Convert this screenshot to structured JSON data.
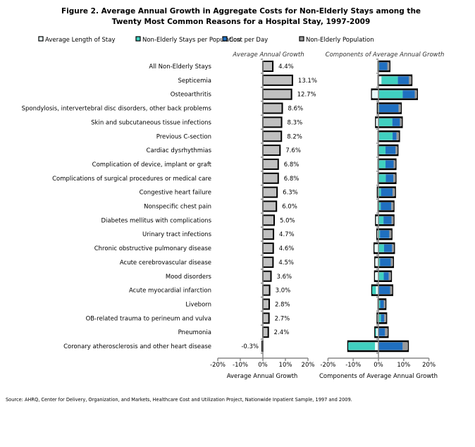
{
  "title_line1": "Figure 2.  Average Annual Growth in Aggregate Costs for Non-Elderly Stays among the",
  "title_line2": "Twenty Most Common Reasons for a Hospital Stay, 1997-2009",
  "source": "Source: AHRQ, Center for Delivery, Organization, and Markets, Healthcare Cost and Utilization Project, Nationwide Inpatient Sample, 1997 and 2009.",
  "colors": {
    "los": "#e8fafa",
    "stays": "#40d0c0",
    "cost": "#1f6fc0",
    "pop": "#999999",
    "total": "#c0c0c0"
  },
  "chart_data": [
    {
      "type": "bar",
      "orientation": "horizontal",
      "subtitle": "Average Annual Growth",
      "xlabel": "Average Annual Growth",
      "xlim": [
        -20,
        20
      ],
      "ticks": [
        "-20%",
        "-10%",
        "0%",
        "10%",
        "20%"
      ],
      "categories": [
        "All Non-Elderly Stays",
        "Septicemia",
        "Osteoarthritis",
        "Spondylosis, intervertebral disc disorders, other back problems",
        "Skin and subcutaneous tissue infections",
        "Previous C-section",
        "Cardiac dysrhythmias",
        "Complication of device, implant or graft",
        "Complications of surgical procedures or medical care",
        "Congestive heart failure",
        "Nonspecific chest pain",
        "Diabetes mellitus with complications",
        "Urinary tract infections",
        "Chronic obstructive pulmonary disease",
        "Acute cerebrovascular disease",
        "Mood disorders",
        "Acute myocardial infarction",
        "Liveborn",
        "OB-related trauma to perineum and vulva",
        "Pneumonia",
        "Coronary atherosclerosis and other heart disease"
      ],
      "values": [
        4.4,
        13.1,
        12.7,
        8.6,
        8.3,
        8.2,
        7.6,
        6.8,
        6.8,
        6.3,
        6.0,
        5.0,
        4.7,
        4.6,
        4.5,
        3.6,
        3.0,
        2.8,
        2.7,
        2.4,
        -0.3
      ],
      "labels": [
        "4.4%",
        "13.1%",
        "12.7%",
        "8.6%",
        "8.3%",
        "8.2%",
        "7.6%",
        "6.8%",
        "6.8%",
        "6.3%",
        "6.0%",
        "5.0%",
        "4.7%",
        "4.6%",
        "4.5%",
        "3.6%",
        "3.0%",
        "2.8%",
        "2.7%",
        "2.4%",
        "-0.3%"
      ]
    },
    {
      "type": "bar",
      "orientation": "horizontal",
      "stacked": true,
      "subtitle": "Components of Average Annual Growth",
      "xlabel": "Components of Average Annual Growth",
      "xlim": [
        -20,
        20
      ],
      "ticks": [
        "-20%",
        "-10%",
        "0%",
        "10%",
        "20%"
      ],
      "legend": "top",
      "series": [
        {
          "name": "Average Length of Stay",
          "key": "los",
          "values": [
            0,
            1.2,
            -2.6,
            -0.3,
            -1.0,
            0.3,
            0,
            0,
            0.1,
            -0.3,
            0.1,
            -1.0,
            -0.5,
            -1.6,
            -1.3,
            -1.4,
            -1.0,
            0.2,
            -0.4,
            -0.9,
            -1.4
          ]
        },
        {
          "name": "Non-Elderly Stays per Population",
          "key": "stays",
          "values": [
            0.3,
            6.5,
            9.6,
            0.3,
            5.5,
            5.3,
            2.8,
            2.8,
            2.8,
            1.0,
            0.8,
            2.0,
            0.6,
            2.2,
            0.6,
            2.1,
            -1.5,
            0.5,
            1.0,
            -0.4,
            -10.6
          ]
        },
        {
          "name": "Cost per Day",
          "key": "cost",
          "values": [
            3.2,
            4.4,
            4.8,
            7.7,
            3.0,
            1.6,
            4.0,
            3.2,
            3.0,
            4.6,
            4.2,
            3.2,
            3.7,
            3.2,
            4.3,
            2.0,
            4.6,
            1.4,
            1.3,
            2.6,
            9.6
          ]
        },
        {
          "name": "Non-Elderly Population",
          "key": "pop",
          "values": [
            0.9,
            1.0,
            0.9,
            0.9,
            0.8,
            1.0,
            0.8,
            0.8,
            0.9,
            1.0,
            0.9,
            0.8,
            0.9,
            0.8,
            0.9,
            0.9,
            0.9,
            0.7,
            0.8,
            1.1,
            2.1
          ]
        }
      ]
    }
  ]
}
